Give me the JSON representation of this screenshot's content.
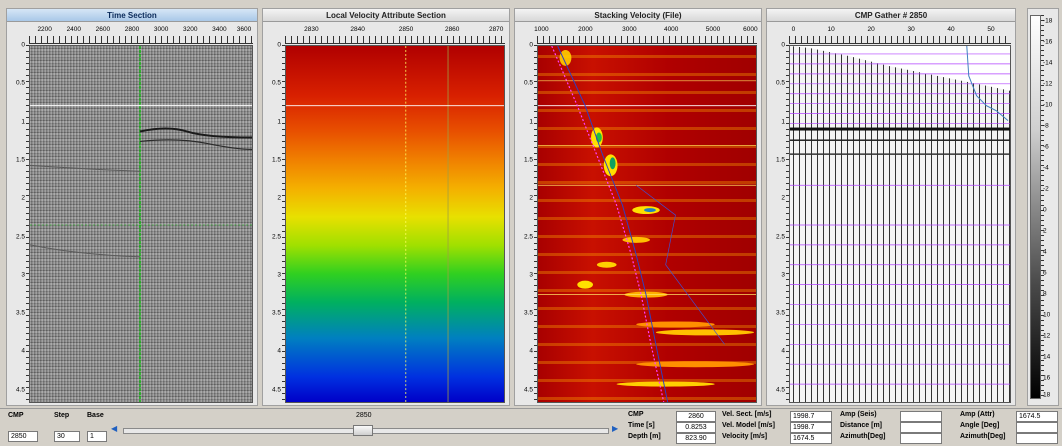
{
  "panels": [
    {
      "title": "Time Section",
      "x_ticks": [
        "2200",
        "2400",
        "2600",
        "2800",
        "3000",
        "3200",
        "3400",
        "3600"
      ],
      "y_ticks": [
        "0",
        "0.5",
        "1",
        "1.5",
        "2",
        "2.5",
        "3",
        "3.5",
        "4",
        "4.5"
      ]
    },
    {
      "title": "Local Velocity Attribute Section",
      "x_ticks": [
        "2830",
        "2840",
        "2850",
        "2860",
        "2870"
      ],
      "y_ticks": [
        "0",
        "0.5",
        "1",
        "1.5",
        "2",
        "2.5",
        "3",
        "3.5",
        "4",
        "4.5"
      ]
    },
    {
      "title": "Stacking Velocity (File)",
      "x_ticks": [
        "1000",
        "2000",
        "3000",
        "4000",
        "5000",
        "6000"
      ],
      "y_ticks": [
        "0",
        "0.5",
        "1",
        "1.5",
        "2",
        "2.5",
        "3",
        "3.5",
        "4",
        "4.5"
      ]
    },
    {
      "title": "CMP Gather # 2850",
      "x_ticks": [
        "0",
        "10",
        "20",
        "30",
        "40",
        "50"
      ],
      "y_ticks": [
        "0",
        "0.5",
        "1",
        "1.5",
        "2",
        "2.5",
        "3",
        "3.5",
        "4",
        "4.5"
      ]
    }
  ],
  "colorbar_ticks": [
    "-18",
    "-16",
    "-14",
    "-12",
    "-10",
    "-8",
    "-6",
    "-4",
    "-2",
    "0",
    "2",
    "4",
    "6",
    "8",
    "10",
    "12",
    "14",
    "16",
    "18"
  ],
  "controls": {
    "cmp_label": "CMP",
    "cmp_value": "2850",
    "step_label": "Step",
    "step_value": "30",
    "base_label": "Base",
    "base_value": "1",
    "slider_value": "2850"
  },
  "readout": {
    "cmp_label": "CMP",
    "cmp_value": "2860",
    "time_label": "Time [s]",
    "time_value": "0.8253",
    "depth_label": "Depth [m]",
    "depth_value": "823.90",
    "vel_sect_label": "Vel. Sect. [m/s]",
    "vel_sect_value": "1998.7",
    "vel_model_label": "Vel. Model [m/s]",
    "vel_model_value": "1998.7",
    "velocity_label": "Velocity [m/s]",
    "velocity_value": "1674.5",
    "amp_seis_label": "Amp (Seis)",
    "distance_label": "Distance [m]",
    "azimuth_label": "Azimuth[Deg]",
    "amp_attr_label": "Amp (Attr)",
    "amp_attr_value": "1674.5",
    "angle_label": "Angle [Deg]",
    "azimuth2_label": "Azimuth[Deg]"
  },
  "colors": {
    "highlight_line": "#00c000",
    "pick_marker": "#ff40ff",
    "guide_line": "#b040ff"
  }
}
